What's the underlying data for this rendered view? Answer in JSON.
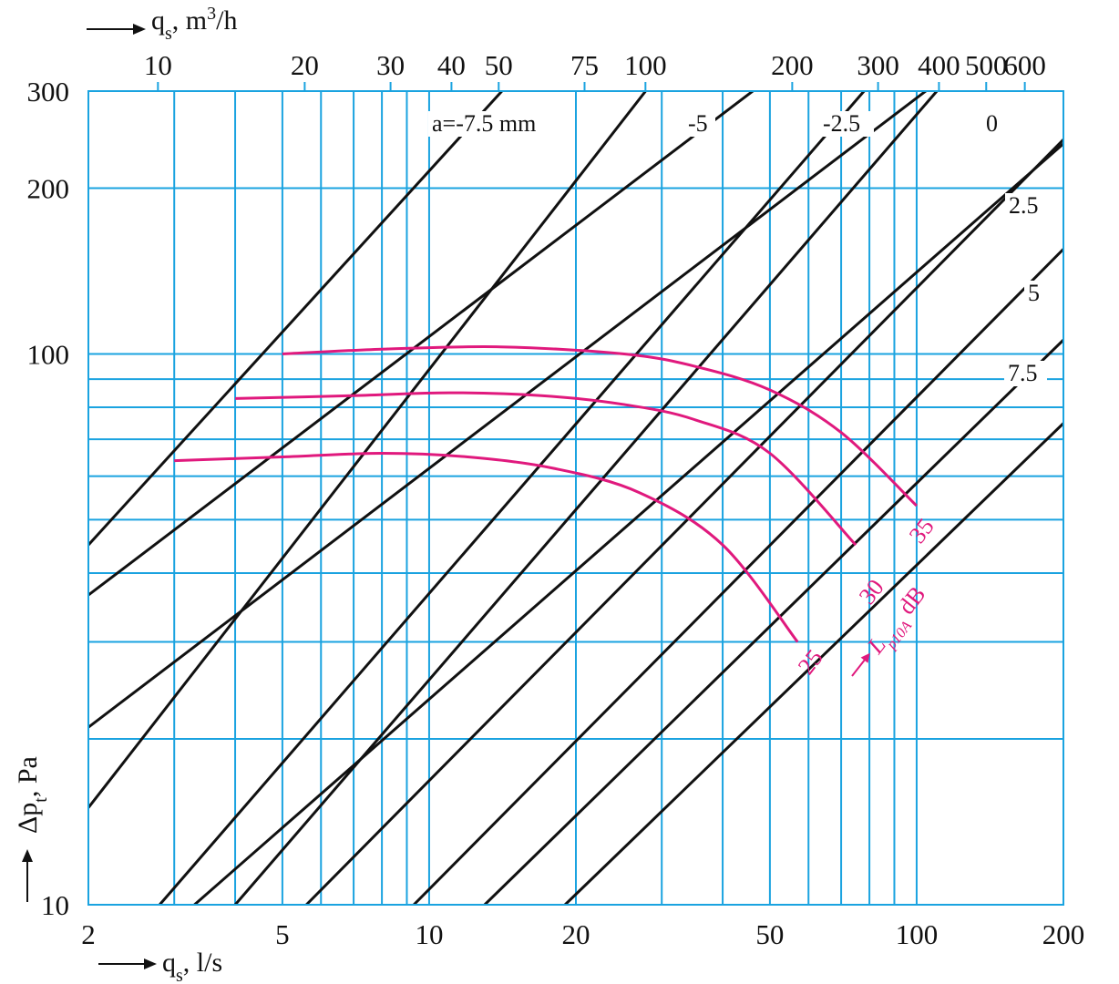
{
  "chart_data": {
    "type": "line",
    "x_scale": "log",
    "y_scale": "log",
    "xlim": [
      2,
      200
    ],
    "ylim": [
      10,
      300
    ],
    "grid": true,
    "xlabel": "q",
    "xlabel_sub": "s",
    "xlabel_unit": ", l/s",
    "x_ticks": [
      "2",
      "5",
      "10",
      "20",
      "50",
      "100",
      "200"
    ],
    "x_top_label": "q",
    "x_top_label_sub": "s",
    "x_top_label_unit": ", m",
    "x_top_label_sup": "3",
    "x_top_label_tail": "/h",
    "x_top_ticks": [
      10,
      20,
      30,
      40,
      50,
      75,
      100,
      200,
      300,
      400,
      500,
      600
    ],
    "ylabel": "Δp",
    "ylabel_sub": "t",
    "ylabel_unit": ", Pa",
    "y_ticks": [
      "10",
      "100",
      "200",
      "300"
    ],
    "line_set_prefix": "a=",
    "line_set_unit": " mm",
    "series": [
      {
        "name": "-7.5",
        "x": [
          2.0,
          14.1
        ],
        "y": [
          45.0,
          300.0
        ]
      },
      {
        "name": "-5",
        "x": [
          2.0,
          27.8
        ],
        "y": [
          15.0,
          300.0
        ]
      },
      {
        "name": "-2.5",
        "x": [
          2.8,
          78.0
        ],
        "y": [
          10.0,
          300.0
        ]
      },
      {
        "name": "0",
        "x": [
          4.0,
          110.0
        ],
        "y": [
          10.0,
          300.0
        ]
      },
      {
        "name": "2.5",
        "x": [
          5.6,
          200.0
        ],
        "y": [
          10.0,
          245.0
        ]
      },
      {
        "name": "5",
        "x": [
          9.3,
          200.0
        ],
        "y": [
          10.0,
          155.0
        ]
      },
      {
        "name": "7.5",
        "x": [
          13.0,
          200.0
        ],
        "y": [
          10.0,
          106.0
        ]
      },
      {
        "name": "",
        "x": [
          2.0,
          210.0
        ],
        "y": [
          36.5,
          830.0
        ]
      },
      {
        "name": "",
        "x": [
          2.0,
          210.0
        ],
        "y": [
          21.0,
          480.0
        ]
      },
      {
        "name": "",
        "x": [
          3.3,
          210.0
        ],
        "y": [
          10.0,
          250.0
        ]
      },
      {
        "name": "",
        "x": [
          19.0,
          210.0
        ],
        "y": [
          10.0,
          78.0
        ]
      }
    ],
    "noise_curves": [
      {
        "name": "35",
        "x": [
          5.0,
          8.0,
          14.0,
          25.0,
          35.0,
          50.0,
          70.0,
          100.0
        ],
        "y": [
          100.0,
          102.0,
          103.0,
          100.0,
          95.0,
          86.0,
          72.0,
          53.0
        ]
      },
      {
        "name": "30",
        "x": [
          4.0,
          7.0,
          11.0,
          17.0,
          25.0,
          35.0,
          50.0,
          75.0
        ],
        "y": [
          83.0,
          84.0,
          85.0,
          84.0,
          81.0,
          76.0,
          66.0,
          45.0
        ]
      },
      {
        "name": "25",
        "x": [
          3.0,
          5.0,
          8.0,
          12.0,
          18.0,
          27.0,
          40.0,
          57.0
        ],
        "y": [
          64.0,
          65.0,
          66.0,
          65.0,
          62.0,
          56.0,
          45.0,
          30.0
        ]
      }
    ],
    "noise_axis_label": "L",
    "noise_axis_label_sub": "p10A",
    "noise_axis_label_unit": " dB"
  },
  "colors": {
    "grid": "#1aa3e0",
    "lines": "#111111",
    "noise": "#e0197d"
  }
}
